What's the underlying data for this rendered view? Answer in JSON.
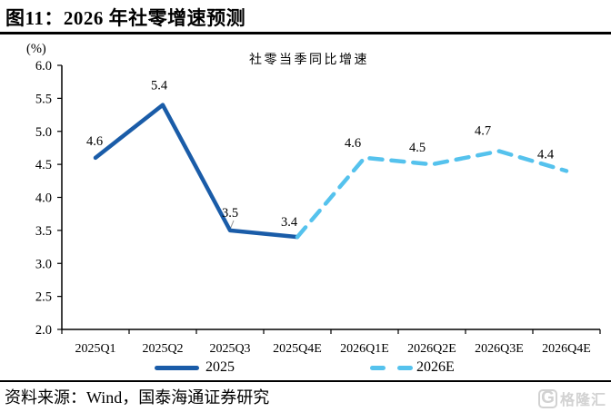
{
  "page": {
    "title": "图11：2026 年社零增速预测",
    "source": "资料来源：Wind，国泰海通证券研究",
    "watermark": "格隆汇",
    "watermark_icon": "G"
  },
  "chart_data": {
    "type": "line",
    "subtitle": "社零当季同比增速",
    "unit_label": "(%)",
    "categories": [
      "2025Q1",
      "2025Q2",
      "2025Q3",
      "2025Q4E",
      "2026Q1E",
      "2026Q2E",
      "2026Q3E",
      "2026Q4E"
    ],
    "ylim": [
      2.0,
      6.0
    ],
    "yticks": [
      "6.0",
      "5.5",
      "5.0",
      "4.5",
      "4.0",
      "3.5",
      "3.0",
      "2.5",
      "2.0"
    ],
    "grid": false,
    "legend_position": "bottom",
    "axis_color": "#000000",
    "series": [
      {
        "name": "2025",
        "style": "solid",
        "color": "#1A5CA8",
        "start_index": 0,
        "values": [
          4.6,
          5.4,
          3.5,
          3.4
        ]
      },
      {
        "name": "2026E",
        "style": "dashed",
        "color": "#55C2ED",
        "start_index": 3,
        "values": [
          3.4,
          4.6,
          4.5,
          4.7,
          4.4
        ]
      }
    ]
  }
}
